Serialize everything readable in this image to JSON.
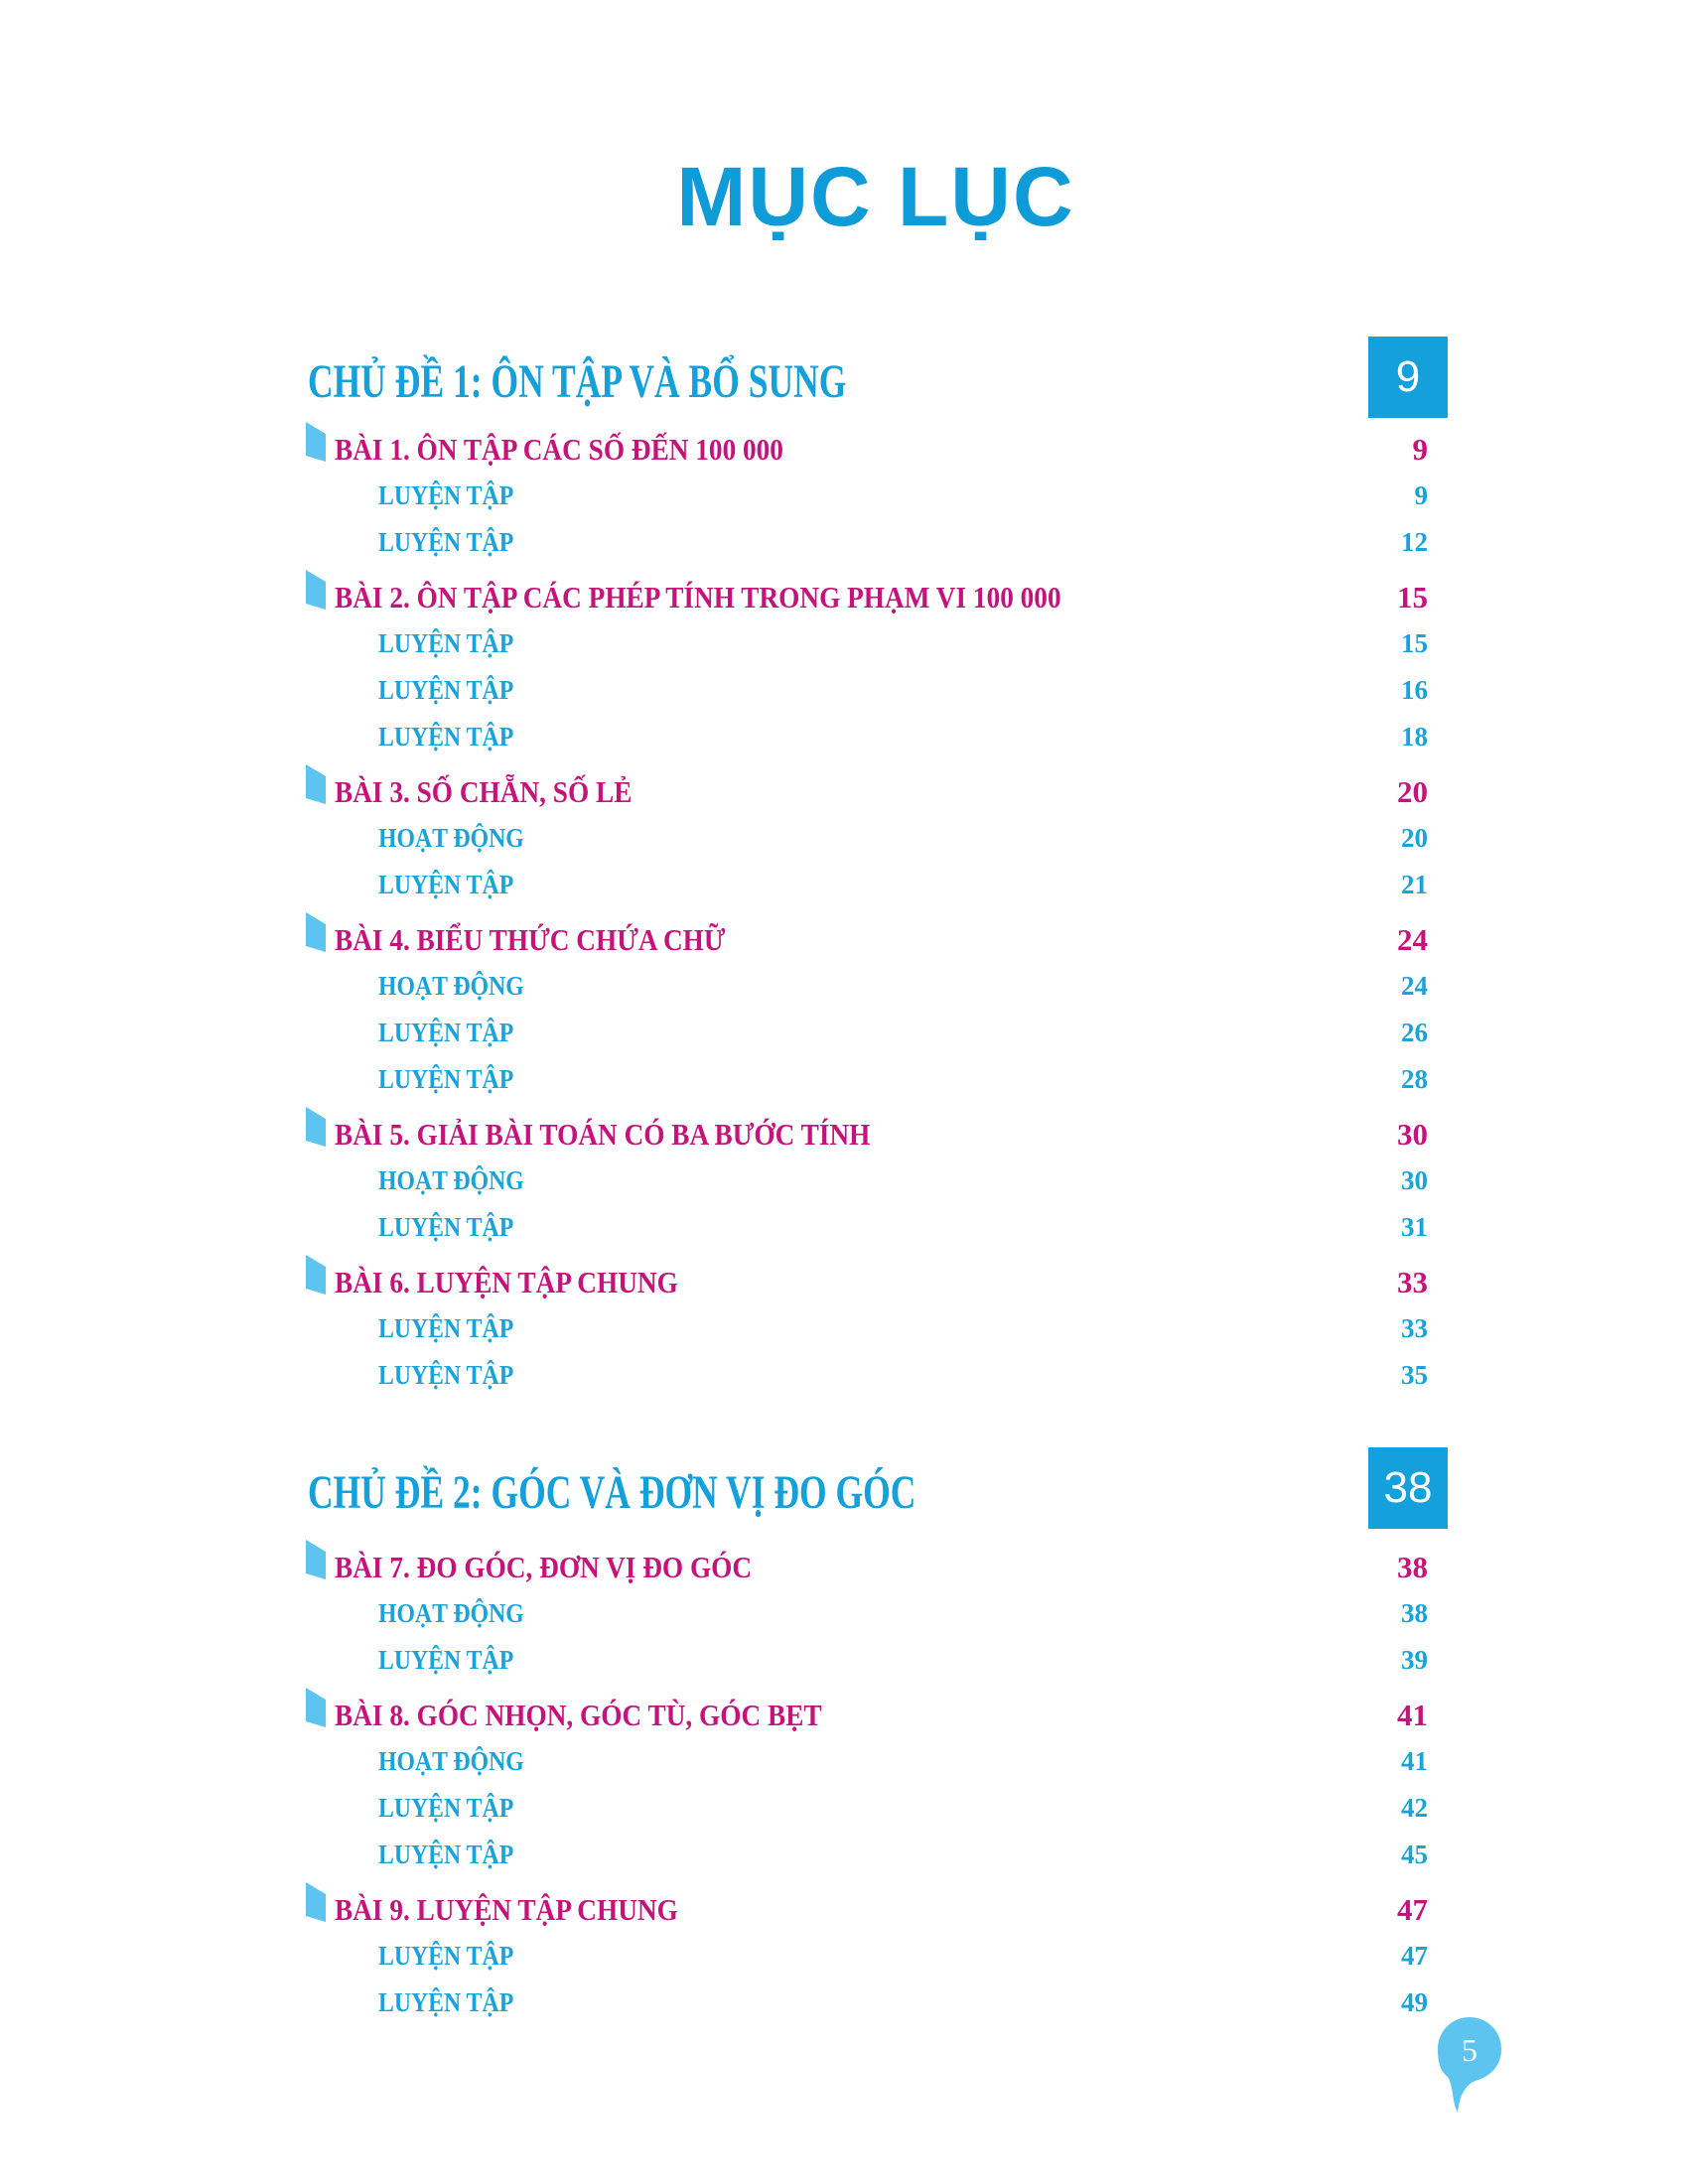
{
  "title": "MỤC LỤC",
  "page_number": "5",
  "colors": {
    "title": "#0e9bd8",
    "lesson": "#c4137a",
    "sub": "#1aa3d9",
    "bookmark": "#5cc4ef"
  },
  "sections": [
    {
      "title": "CHỦ ĐỀ 1: ÔN TẬP VÀ BỔ SUNG",
      "page": "9",
      "rows": [
        {
          "type": "lesson",
          "label": "BÀI 1. ÔN TẬP CÁC SỐ ĐẾN 100 000",
          "page": "9"
        },
        {
          "type": "sub",
          "label": "LUYỆN TẬP",
          "page": "9"
        },
        {
          "type": "sub",
          "label": "LUYỆN TẬP",
          "page": "12"
        },
        {
          "type": "lesson",
          "label": "BÀI 2. ÔN TẬP CÁC PHÉP TÍNH TRONG PHẠM VI 100 000",
          "page": "15"
        },
        {
          "type": "sub",
          "label": "LUYỆN TẬP",
          "page": "15"
        },
        {
          "type": "sub",
          "label": "LUYỆN TẬP",
          "page": "16"
        },
        {
          "type": "sub",
          "label": "LUYỆN TẬP",
          "page": "18"
        },
        {
          "type": "lesson",
          "label": "BÀI 3. SỐ CHẴN, SỐ LẺ",
          "page": "20"
        },
        {
          "type": "sub",
          "label": "HOẠT ĐỘNG",
          "page": "20"
        },
        {
          "type": "sub",
          "label": "LUYỆN TẬP",
          "page": "21"
        },
        {
          "type": "lesson",
          "label": "BÀI 4. BIỂU THỨC CHỨA CHỮ",
          "page": "24"
        },
        {
          "type": "sub",
          "label": "HOẠT ĐỘNG",
          "page": "24"
        },
        {
          "type": "sub",
          "label": "LUYỆN TẬP",
          "page": "26"
        },
        {
          "type": "sub",
          "label": "LUYỆN TẬP",
          "page": "28"
        },
        {
          "type": "lesson",
          "label": "BÀI 5. GIẢI BÀI TOÁN CÓ BA BƯỚC TÍNH",
          "page": "30"
        },
        {
          "type": "sub",
          "label": "HOẠT ĐỘNG",
          "page": "30"
        },
        {
          "type": "sub",
          "label": "LUYỆN TẬP",
          "page": "31"
        },
        {
          "type": "lesson",
          "label": "BÀI 6. LUYỆN TẬP CHUNG",
          "page": "33"
        },
        {
          "type": "sub",
          "label": "LUYỆN TẬP",
          "page": "33"
        },
        {
          "type": "sub",
          "label": "LUYỆN TẬP",
          "page": "35"
        }
      ]
    },
    {
      "title": "CHỦ ĐỀ 2: GÓC VÀ ĐƠN VỊ ĐO GÓC",
      "page": "38",
      "rows": [
        {
          "type": "lesson",
          "label": "BÀI 7. ĐO GÓC, ĐƠN VỊ ĐO GÓC",
          "page": "38"
        },
        {
          "type": "sub",
          "label": "HOẠT ĐỘNG",
          "page": "38"
        },
        {
          "type": "sub",
          "label": "LUYỆN TẬP",
          "page": "39"
        },
        {
          "type": "lesson",
          "label": "BÀI 8. GÓC NHỌN, GÓC TÙ, GÓC BẸT",
          "page": "41"
        },
        {
          "type": "sub",
          "label": "HOẠT ĐỘNG",
          "page": "41"
        },
        {
          "type": "sub",
          "label": "LUYỆN TẬP",
          "page": "42"
        },
        {
          "type": "sub",
          "label": "LUYỆN TẬP",
          "page": "45"
        },
        {
          "type": "lesson",
          "label": "BÀI 9. LUYỆN TẬP CHUNG",
          "page": "47"
        },
        {
          "type": "sub",
          "label": "LUYỆN TẬP",
          "page": "47"
        },
        {
          "type": "sub",
          "label": "LUYỆN TẬP",
          "page": "49"
        }
      ]
    }
  ]
}
